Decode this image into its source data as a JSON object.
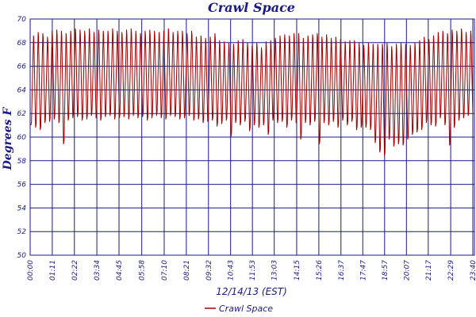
{
  "chart_data": {
    "type": "line",
    "title": "Crawl Space",
    "xlabel": "12/14/13 (EST)",
    "ylabel": "Degrees F",
    "ylim": [
      50,
      70
    ],
    "yticks": [
      50,
      52,
      54,
      56,
      58,
      60,
      62,
      64,
      66,
      68,
      70
    ],
    "xticks": [
      "00:00",
      "01:11",
      "02:22",
      "03:34",
      "04:45",
      "05:58",
      "07:10",
      "08:21",
      "09:32",
      "10:43",
      "11:53",
      "13:03",
      "14:15",
      "15:26",
      "16:37",
      "17:47",
      "18:57",
      "20:07",
      "21:17",
      "22:29",
      "23:40"
    ],
    "grid": true,
    "legend_position": "bottom",
    "colors": {
      "series": "#a00000",
      "grid": "#1a1a80",
      "text": "#1a1a80"
    },
    "series": [
      {
        "name": "Crawl Space",
        "cycle_minutes": 12,
        "x_start": "00:00",
        "x_end": "23:40",
        "peaks": [
          68.6,
          68.9,
          68.8,
          68.5,
          69,
          69.1,
          69,
          68.8,
          69,
          69.2,
          69.1,
          69,
          69.2,
          68.9,
          69.1,
          69,
          69,
          69.2,
          69,
          68.9,
          69.1,
          69.2,
          69,
          68.8,
          69,
          69.1,
          69,
          68.9,
          69,
          69.2,
          68.9,
          69,
          69,
          68.8,
          69,
          68.5,
          68.6,
          68.4,
          68.5,
          68.8,
          68.2,
          68.1,
          68,
          67.9,
          68.2,
          68.3,
          68,
          67.8,
          68,
          67.6,
          68.1,
          68.2,
          68.4,
          68.6,
          68.7,
          68.6,
          68.8,
          68.8,
          68.4,
          68.6,
          68.7,
          68.8,
          68.5,
          68.7,
          68.4,
          68.5,
          68.3,
          68.1,
          68.2,
          68.2,
          68,
          67.8,
          68,
          67.9,
          67.9,
          67.9,
          68,
          67.7,
          67.9,
          68,
          67.9,
          67.8,
          68,
          68.2,
          68.5,
          68.3,
          68.6,
          68.9,
          69,
          68.8,
          69.1,
          69,
          69.2,
          68.9,
          69
        ],
        "troughs": [
          61,
          60.8,
          60.6,
          61.2,
          61.3,
          61.5,
          61.2,
          59.4,
          61.4,
          61.6,
          61.7,
          61.4,
          61.5,
          61.8,
          61.6,
          61.4,
          61.7,
          61.8,
          61.5,
          61.6,
          61.7,
          61.5,
          61.8,
          61.6,
          61.7,
          61.4,
          61.6,
          61.8,
          61.6,
          61.5,
          61.8,
          61.7,
          61.5,
          61.6,
          61.8,
          61.4,
          61.5,
          61.2,
          61.3,
          61.4,
          60.9,
          61.1,
          61.4,
          60,
          61.2,
          61,
          61.3,
          60.5,
          61,
          60.8,
          61,
          60.2,
          61.4,
          61.2,
          61.3,
          60.8,
          61.4,
          61.2,
          59.8,
          61.2,
          61,
          61.3,
          59.4,
          61.2,
          61,
          61.3,
          60.8,
          61.4,
          61,
          61.3,
          60.6,
          60.8,
          60.8,
          60.6,
          59.5,
          58.7,
          58.4,
          59.8,
          59.2,
          59.4,
          59.3,
          59.8,
          60.2,
          60.4,
          60.6,
          61.2,
          61,
          60.9,
          61.6,
          61,
          59.3,
          60.8,
          61.4,
          61.6,
          61.8,
          61.5,
          61.8,
          61.9
        ],
        "trough_extra_minima": [
          60,
          58.8,
          58.4
        ]
      }
    ],
    "legend": [
      "Crawl Space"
    ]
  }
}
